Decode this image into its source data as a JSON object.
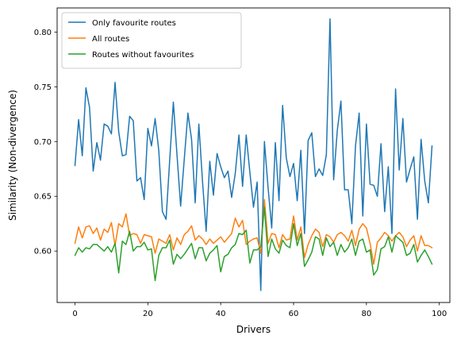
{
  "chart_data": {
    "type": "line",
    "title": "",
    "xlabel": "Drivers",
    "ylabel": "Similarity (Non-divergence)",
    "xlim": [
      -4.9,
      102.9
    ],
    "ylim": [
      0.553,
      0.822
    ],
    "xticks": [
      0,
      20,
      40,
      60,
      80,
      100
    ],
    "yticks": [
      0.6,
      0.65,
      0.7,
      0.75,
      0.8
    ],
    "xtick_labels": [
      "0",
      "20",
      "40",
      "60",
      "80",
      "100"
    ],
    "ytick_labels": [
      "0.60",
      "0.65",
      "0.70",
      "0.75",
      "0.80"
    ],
    "grid": false,
    "legend_position": "top-left",
    "series": [
      {
        "name": "Only favourite routes",
        "color": "#1f77b4",
        "x": [
          0,
          1,
          2,
          3,
          4,
          5,
          6,
          7,
          8,
          9,
          10,
          11,
          12,
          13,
          14,
          15,
          16,
          17,
          18,
          19,
          20,
          21,
          22,
          23,
          24,
          25,
          26,
          27,
          28,
          29,
          30,
          31,
          32,
          33,
          34,
          35,
          36,
          37,
          38,
          39,
          40,
          41,
          42,
          43,
          44,
          45,
          46,
          47,
          48,
          49,
          50,
          51,
          52,
          53,
          54,
          55,
          56,
          57,
          58,
          59,
          60,
          61,
          62,
          63,
          64,
          65,
          66,
          67,
          68,
          69,
          70,
          71,
          72,
          73,
          74,
          75,
          76,
          77,
          78,
          79,
          80,
          81,
          82,
          83,
          84,
          85,
          86,
          87,
          88,
          89,
          90,
          91,
          92,
          93,
          94,
          95,
          96,
          97,
          98
        ],
        "values": [
          0.678,
          0.72,
          0.687,
          0.749,
          0.731,
          0.673,
          0.699,
          0.683,
          0.716,
          0.714,
          0.707,
          0.754,
          0.709,
          0.687,
          0.688,
          0.723,
          0.719,
          0.664,
          0.667,
          0.647,
          0.712,
          0.696,
          0.721,
          0.692,
          0.636,
          0.629,
          0.683,
          0.736,
          0.688,
          0.641,
          0.684,
          0.726,
          0.702,
          0.644,
          0.716,
          0.664,
          0.618,
          0.682,
          0.651,
          0.689,
          0.677,
          0.667,
          0.673,
          0.649,
          0.671,
          0.706,
          0.659,
          0.706,
          0.672,
          0.64,
          0.663,
          0.564,
          0.7,
          0.658,
          0.621,
          0.699,
          0.646,
          0.733,
          0.685,
          0.668,
          0.68,
          0.646,
          0.692,
          0.616,
          0.701,
          0.708,
          0.668,
          0.675,
          0.669,
          0.688,
          0.812,
          0.665,
          0.71,
          0.737,
          0.656,
          0.656,
          0.625,
          0.696,
          0.726,
          0.632,
          0.716,
          0.661,
          0.66,
          0.65,
          0.698,
          0.636,
          0.677,
          0.616,
          0.748,
          0.674,
          0.721,
          0.663,
          0.675,
          0.686,
          0.629,
          0.702,
          0.664,
          0.644,
          0.696
        ]
      },
      {
        "name": "All routes",
        "color": "#ff7f0e",
        "x": [
          0,
          1,
          2,
          3,
          4,
          5,
          6,
          7,
          8,
          9,
          10,
          11,
          12,
          13,
          14,
          15,
          16,
          17,
          18,
          19,
          20,
          21,
          22,
          23,
          24,
          25,
          26,
          27,
          28,
          29,
          30,
          31,
          32,
          33,
          34,
          35,
          36,
          37,
          38,
          39,
          40,
          41,
          42,
          43,
          44,
          45,
          46,
          47,
          48,
          49,
          50,
          51,
          52,
          53,
          54,
          55,
          56,
          57,
          58,
          59,
          60,
          61,
          62,
          63,
          64,
          65,
          66,
          67,
          68,
          69,
          70,
          71,
          72,
          73,
          74,
          75,
          76,
          77,
          78,
          79,
          80,
          81,
          82,
          83,
          84,
          85,
          86,
          87,
          88,
          89,
          90,
          91,
          92,
          93,
          94,
          95,
          96,
          97,
          98
        ],
        "values": [
          0.607,
          0.622,
          0.612,
          0.622,
          0.623,
          0.616,
          0.621,
          0.61,
          0.62,
          0.617,
          0.626,
          0.605,
          0.625,
          0.622,
          0.634,
          0.614,
          0.616,
          0.615,
          0.607,
          0.615,
          0.614,
          0.613,
          0.598,
          0.611,
          0.609,
          0.607,
          0.615,
          0.601,
          0.612,
          0.606,
          0.615,
          0.618,
          0.623,
          0.61,
          0.614,
          0.611,
          0.606,
          0.611,
          0.607,
          0.61,
          0.613,
          0.608,
          0.612,
          0.616,
          0.63,
          0.622,
          0.628,
          0.606,
          0.609,
          0.611,
          0.612,
          0.598,
          0.647,
          0.607,
          0.616,
          0.615,
          0.603,
          0.615,
          0.61,
          0.611,
          0.632,
          0.61,
          0.622,
          0.594,
          0.606,
          0.614,
          0.62,
          0.617,
          0.604,
          0.615,
          0.613,
          0.608,
          0.615,
          0.617,
          0.614,
          0.609,
          0.619,
          0.605,
          0.62,
          0.625,
          0.621,
          0.607,
          0.588,
          0.608,
          0.612,
          0.617,
          0.614,
          0.609,
          0.614,
          0.617,
          0.613,
          0.604,
          0.61,
          0.614,
          0.6,
          0.614,
          0.605,
          0.605,
          0.603
        ]
      },
      {
        "name": "Routes without favourites",
        "color": "#2ca02c",
        "x": [
          0,
          1,
          2,
          3,
          4,
          5,
          6,
          7,
          8,
          9,
          10,
          11,
          12,
          13,
          14,
          15,
          16,
          17,
          18,
          19,
          20,
          21,
          22,
          23,
          24,
          25,
          26,
          27,
          28,
          29,
          30,
          31,
          32,
          33,
          34,
          35,
          36,
          37,
          38,
          39,
          40,
          41,
          42,
          43,
          44,
          45,
          46,
          47,
          48,
          49,
          50,
          51,
          52,
          53,
          54,
          55,
          56,
          57,
          58,
          59,
          60,
          61,
          62,
          63,
          64,
          65,
          66,
          67,
          68,
          69,
          70,
          71,
          72,
          73,
          74,
          75,
          76,
          77,
          78,
          79,
          80,
          81,
          82,
          83,
          84,
          85,
          86,
          87,
          88,
          89,
          90,
          91,
          92,
          93,
          94,
          95,
          96,
          97,
          98
        ],
        "values": [
          0.596,
          0.603,
          0.599,
          0.603,
          0.602,
          0.606,
          0.606,
          0.603,
          0.6,
          0.604,
          0.599,
          0.607,
          0.58,
          0.609,
          0.606,
          0.618,
          0.6,
          0.604,
          0.604,
          0.608,
          0.601,
          0.602,
          0.573,
          0.596,
          0.603,
          0.603,
          0.61,
          0.588,
          0.597,
          0.593,
          0.597,
          0.602,
          0.607,
          0.593,
          0.603,
          0.603,
          0.591,
          0.598,
          0.601,
          0.605,
          0.581,
          0.595,
          0.597,
          0.603,
          0.606,
          0.616,
          0.615,
          0.619,
          0.589,
          0.601,
          0.601,
          0.604,
          0.64,
          0.595,
          0.611,
          0.602,
          0.598,
          0.61,
          0.605,
          0.603,
          0.625,
          0.605,
          0.616,
          0.586,
          0.592,
          0.599,
          0.613,
          0.611,
          0.596,
          0.612,
          0.604,
          0.608,
          0.596,
          0.606,
          0.599,
          0.603,
          0.611,
          0.596,
          0.609,
          0.611,
          0.599,
          0.601,
          0.578,
          0.583,
          0.602,
          0.604,
          0.613,
          0.599,
          0.614,
          0.611,
          0.608,
          0.596,
          0.598,
          0.606,
          0.59,
          0.596,
          0.601,
          0.595,
          0.588
        ]
      }
    ]
  }
}
